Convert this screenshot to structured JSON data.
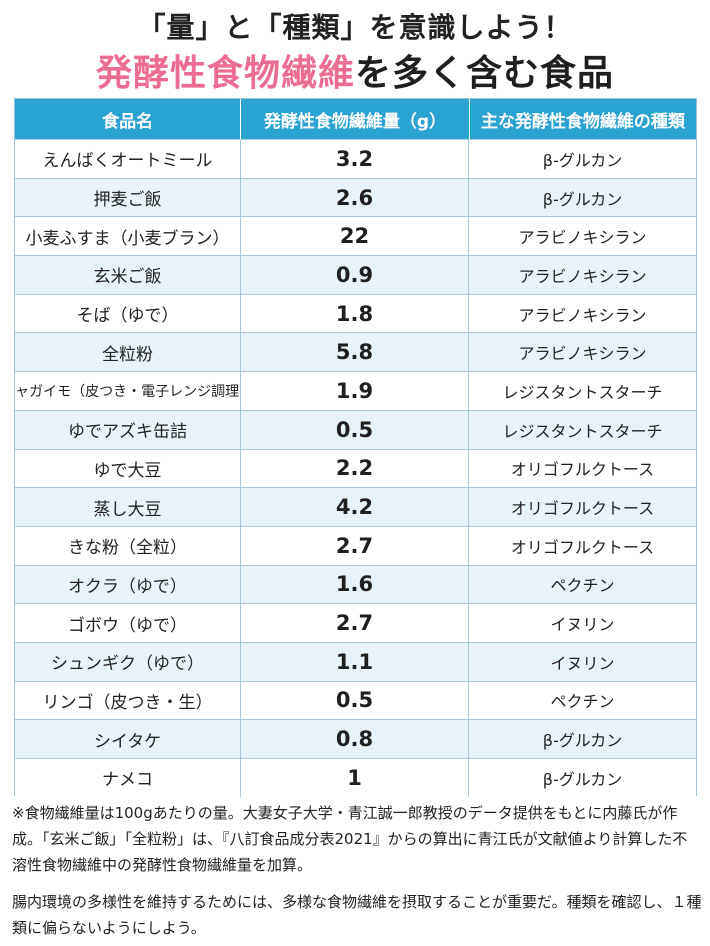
{
  "header": {
    "line1": "「量」と「種類」を意識しよう！",
    "line2_highlight": "発酵性食物繊維",
    "line2_rest": "を多く含む食品"
  },
  "table": {
    "columns": [
      "食品名",
      "発酵性食物繊維量（g）",
      "主な発酵性食物繊維の種類"
    ],
    "rows": [
      {
        "food": "えんばくオートミール",
        "amount": "3.2",
        "type": "β-グルカン"
      },
      {
        "food": "押麦ご飯",
        "amount": "2.6",
        "type": "β-グルカン"
      },
      {
        "food": "小麦ふすま（小麦ブラン）",
        "amount": "22",
        "type": "アラビノキシラン"
      },
      {
        "food": "玄米ご飯",
        "amount": "0.9",
        "type": "アラビノキシラン"
      },
      {
        "food": "そば（ゆで）",
        "amount": "1.8",
        "type": "アラビノキシラン"
      },
      {
        "food": "全粒粉",
        "amount": "5.8",
        "type": "アラビノキシラン"
      },
      {
        "food": "ジャガイモ（皮つき・電子レンジ調理）",
        "amount": "1.9",
        "type": "レジスタントスターチ"
      },
      {
        "food": "ゆでアズキ缶詰",
        "amount": "0.5",
        "type": "レジスタントスターチ"
      },
      {
        "food": "ゆで大豆",
        "amount": "2.2",
        "type": "オリゴフルクトース"
      },
      {
        "food": "蒸し大豆",
        "amount": "4.2",
        "type": "オリゴフルクトース"
      },
      {
        "food": "きな粉（全粒）",
        "amount": "2.7",
        "type": "オリゴフルクトース"
      },
      {
        "food": "オクラ（ゆで）",
        "amount": "1.6",
        "type": "ペクチン"
      },
      {
        "food": "ゴボウ（ゆで）",
        "amount": "2.7",
        "type": "イヌリン"
      },
      {
        "food": "シュンギク（ゆで）",
        "amount": "1.1",
        "type": "イヌリン"
      },
      {
        "food": "リンゴ（皮つき・生）",
        "amount": "0.5",
        "type": "ペクチン"
      },
      {
        "food": "シイタケ",
        "amount": "0.8",
        "type": "β-グルカン"
      },
      {
        "food": "ナメコ",
        "amount": "1",
        "type": "β-グルカン"
      }
    ]
  },
  "notes": {
    "source": "※食物繊維量は100gあたりの量。大妻女子大学・青江誠一郎教授のデータ提供をもとに内藤氏が作成。「玄米ご飯」「全粒粉」は、『八訂食品成分表2021』からの算出に青江氏が文献値より計算した不溶性食物繊維中の発酵性食物繊維量を加算。",
    "advice": "腸内環境の多様性を維持するためには、多様な食物繊維を摂取することが重要だ。種類を確認し、１種類に偏らないようにしよう。"
  },
  "colors": {
    "accent_pink": "#ec6d94",
    "header_blue": "#2aa2d2",
    "row_tint": "#e8f3f9"
  }
}
